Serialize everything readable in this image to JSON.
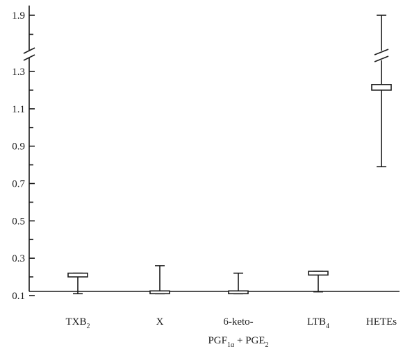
{
  "chart_data": {
    "type": "box",
    "title": "",
    "xlabel": "",
    "ylabel": "",
    "y_axis_break": [
      1.3,
      1.9
    ],
    "y_ticks": [
      "0.1",
      "0.3",
      "0.5",
      "0.7",
      "0.9",
      "1.1",
      "1.3",
      "1.9"
    ],
    "categories": [
      {
        "label": "TXB",
        "sub": "2",
        "label2": "",
        "label2_sub": "",
        "label2_tail": "",
        "label2_sub2": ""
      },
      {
        "label": "X",
        "sub": "",
        "label2": "",
        "label2_sub": "",
        "label2_tail": "",
        "label2_sub2": ""
      },
      {
        "label": "6-keto-",
        "sub": "",
        "label2": "PGF",
        "label2_sub": "1α",
        "label2_tail": " + PGE",
        "label2_sub2": "2"
      },
      {
        "label": "LTB",
        "sub": "4",
        "label2": "",
        "label2_sub": "",
        "label2_tail": "",
        "label2_sub2": ""
      },
      {
        "label": "HETEs",
        "sub": "",
        "label2": "",
        "label2_sub": "",
        "label2_tail": "",
        "label2_sub2": ""
      }
    ],
    "series": [
      {
        "category": "TXB2",
        "low": 0.11,
        "high": 0.22,
        "box_low": 0.2,
        "box_high": 0.22
      },
      {
        "category": "X",
        "low": 0.11,
        "high": 0.26,
        "box_low": 0.11,
        "box_high": 0.125
      },
      {
        "category": "6-keto-PGF1α + PGE2",
        "low": 0.11,
        "high": 0.22,
        "box_low": 0.11,
        "box_high": 0.125
      },
      {
        "category": "LTB4",
        "low": 0.12,
        "high": 0.23,
        "box_low": 0.21,
        "box_high": 0.23
      },
      {
        "category": "HETEs",
        "low": 0.79,
        "high": 1.9,
        "box_low": 1.2,
        "box_high": 1.23
      }
    ]
  }
}
